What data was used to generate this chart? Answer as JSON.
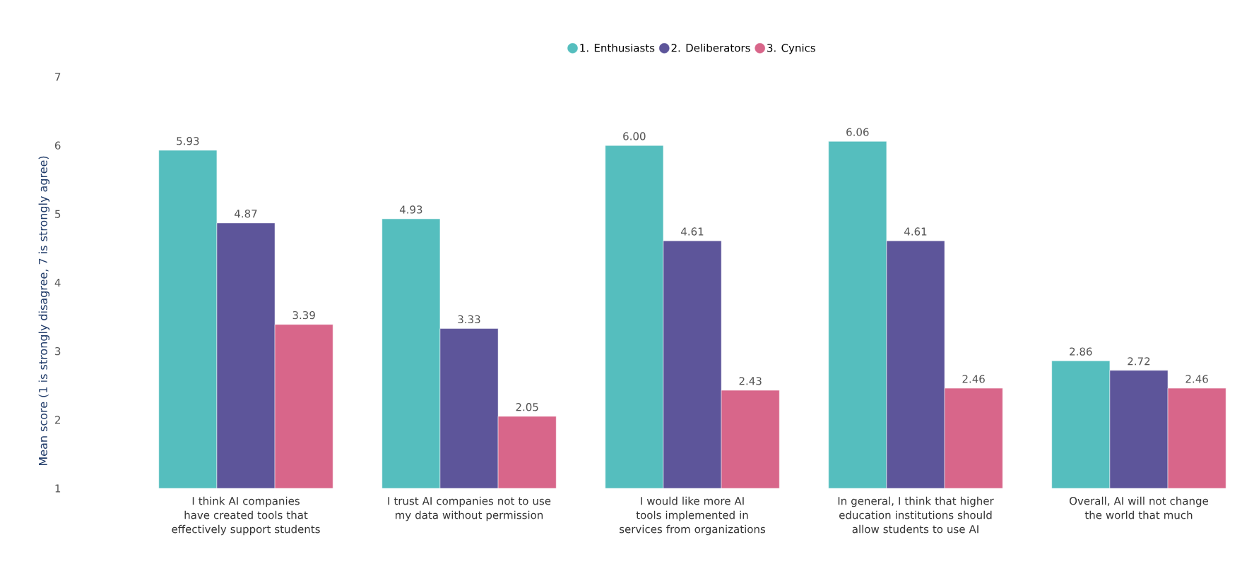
{
  "chart_data": {
    "type": "bar",
    "ylabel": "Mean score (1 is strongly disagree, 7 is strongly agree)",
    "categories": [
      "I think AI companies have created tools that effectively support students",
      "I trust AI companies not to use my data without permission",
      "I would like more AI tools implemented in services from organizations",
      "In general, I think that higher education institutions should allow students to use AI",
      "Overall, AI will not change the world that much"
    ],
    "series": [
      {
        "name": "1. Enthusiasts",
        "color": "#55bebe",
        "values": [
          5.93,
          4.93,
          6.0,
          6.06,
          2.86
        ],
        "value_labels": [
          "5.93",
          "4.93",
          "6.00",
          "6.06",
          "2.86"
        ]
      },
      {
        "name": "2. Deliberators",
        "color": "#5d559a",
        "values": [
          4.87,
          3.33,
          4.61,
          4.61,
          2.72
        ],
        "value_labels": [
          "4.87",
          "3.33",
          "4.61",
          "4.61",
          "2.72"
        ]
      },
      {
        "name": "3. Cynics",
        "color": "#d8668a",
        "values": [
          3.39,
          2.05,
          2.43,
          2.46,
          2.46
        ],
        "value_labels": [
          "3.39",
          "2.05",
          "2.43",
          "2.46",
          "2.46"
        ]
      }
    ],
    "ylim": [
      1,
      7
    ],
    "yticks": [
      1,
      2,
      3,
      4,
      5,
      6,
      7
    ],
    "grid": false,
    "legend": "top"
  }
}
